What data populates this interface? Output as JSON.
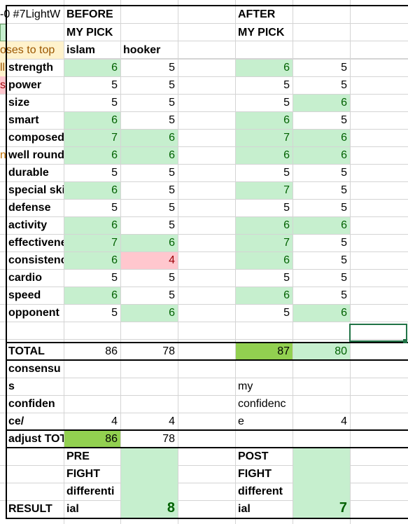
{
  "sheet": {
    "a1_fragment": "-0 #7LightW",
    "a3_fragment": "oses to top",
    "a4_fragment": "ll",
    "a5_fragment": "s",
    "a9_fragment": "n"
  },
  "header": {
    "before": "BEFORE",
    "before_sub": "MY PICK",
    "after": "AFTER",
    "after_sub": "MY PICK",
    "fighter1": "islam",
    "fighter2": "hooker"
  },
  "rows": [
    {
      "label": "strength",
      "b1": "6",
      "b2": "5",
      "a1": "6",
      "a2": "5"
    },
    {
      "label": "power",
      "b1": "5",
      "b2": "5",
      "a1": "5",
      "a2": "5"
    },
    {
      "label": "size",
      "b1": "5",
      "b2": "5",
      "a1": "5",
      "a2": "6"
    },
    {
      "label": "smart",
      "b1": "6",
      "b2": "5",
      "a1": "6",
      "a2": "5"
    },
    {
      "label": "composed",
      "b1": "7",
      "b2": "6",
      "a1": "7",
      "a2": "6"
    },
    {
      "label": "well rounded",
      "b1": "6",
      "b2": "6",
      "a1": "6",
      "a2": "6"
    },
    {
      "label": "durable",
      "b1": "5",
      "b2": "5",
      "a1": "5",
      "a2": "5"
    },
    {
      "label": "special skills",
      "b1": "6",
      "b2": "5",
      "a1": "7",
      "a2": "5"
    },
    {
      "label": "defense",
      "b1": "5",
      "b2": "5",
      "a1": "5",
      "a2": "5"
    },
    {
      "label": "activity",
      "b1": "6",
      "b2": "5",
      "a1": "6",
      "a2": "6"
    },
    {
      "label": "effectiveness",
      "b1": "7",
      "b2": "6",
      "a1": "7",
      "a2": "5"
    },
    {
      "label": "consistency",
      "b1": "6",
      "b2": "4",
      "a1": "6",
      "a2": "5"
    },
    {
      "label": "cardio",
      "b1": "5",
      "b2": "5",
      "a1": "5",
      "a2": "5"
    },
    {
      "label": "speed",
      "b1": "6",
      "b2": "5",
      "a1": "6",
      "a2": "5"
    },
    {
      "label": "opponent",
      "b1": "5",
      "b2": "6",
      "a1": "5",
      "a2": "6"
    }
  ],
  "total": {
    "label": "TOTAL",
    "b1": "86",
    "b2": "78",
    "a1": "87",
    "a2": "80"
  },
  "consensus": {
    "l1": "consensu",
    "l2": "s",
    "l3": "confiden",
    "l4": "ce/",
    "b1": "4",
    "b2": "4",
    "my1": "my",
    "my2": "confidenc",
    "my3": "e",
    "a2": "4"
  },
  "adjust": {
    "label": "adjust TOTAL",
    "b1": "86",
    "b2": "78"
  },
  "result": {
    "label": "RESULT",
    "pre1": "PRE",
    "pre2": "FIGHT",
    "pre3": "differenti",
    "pre4": "ial",
    "pre_value": "8",
    "post1": "POST",
    "post2": "FIGHT",
    "post3": "different",
    "post4": "ial",
    "post_value": "7"
  }
}
